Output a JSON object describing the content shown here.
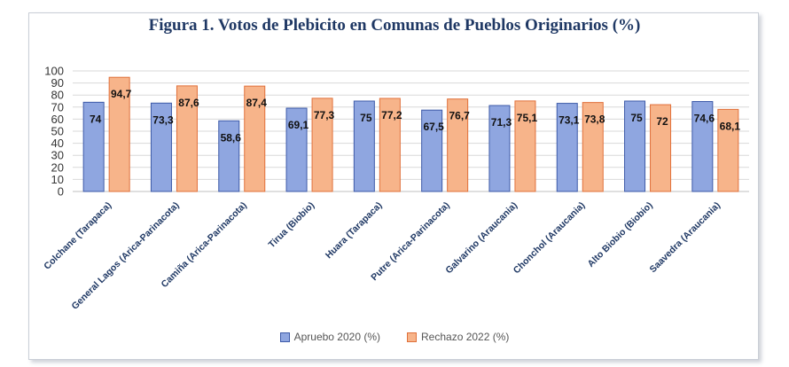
{
  "chart_data": {
    "type": "bar",
    "title": "Figura 1. Votos de Plebicito en Comunas de Pueblos Originarios (%)",
    "categories": [
      "Colchane (Tarapaca)",
      "General Lagos (Arica-Parinacota)",
      "Camiña  (Arica-Parinacota)",
      "Tirua (Biobio)",
      "Huara (Tarapaca)",
      "Putre (Arica-Parinacota)",
      "Galvarino (Araucania)",
      "Chonchol (Araucania)",
      "Alto Biobio (Biobio)",
      "Saavedra (Araucania)"
    ],
    "series": [
      {
        "name": "Apruebo  2020 (%)",
        "values": [
          74,
          73.3,
          58.6,
          69.1,
          75,
          67.5,
          71.3,
          73.1,
          75,
          74.6
        ],
        "labels": [
          "74",
          "73,3",
          "58,6",
          "69,1",
          "75",
          "67,5",
          "71,3",
          "73,1",
          "75",
          "74,6"
        ],
        "color": "#8fa6e0",
        "stroke": "#3d5aa8"
      },
      {
        "name": "Rechazo 2022 (%)",
        "values": [
          94.7,
          87.6,
          87.4,
          77.3,
          77.2,
          76.7,
          75.1,
          73.8,
          72,
          68.1
        ],
        "labels": [
          "94,7",
          "87,6",
          "87,4",
          "77,3",
          "77,2",
          "76,7",
          "75,1",
          "73,8",
          "72",
          "68,1"
        ],
        "color": "#f7b48a",
        "stroke": "#e0703a"
      }
    ],
    "ylim": [
      0,
      100
    ],
    "yticks": [
      "0",
      "10",
      "20",
      "30",
      "40",
      "50",
      "60",
      "70",
      "80",
      "90",
      "100"
    ],
    "grid": true,
    "legend": "bottom"
  }
}
